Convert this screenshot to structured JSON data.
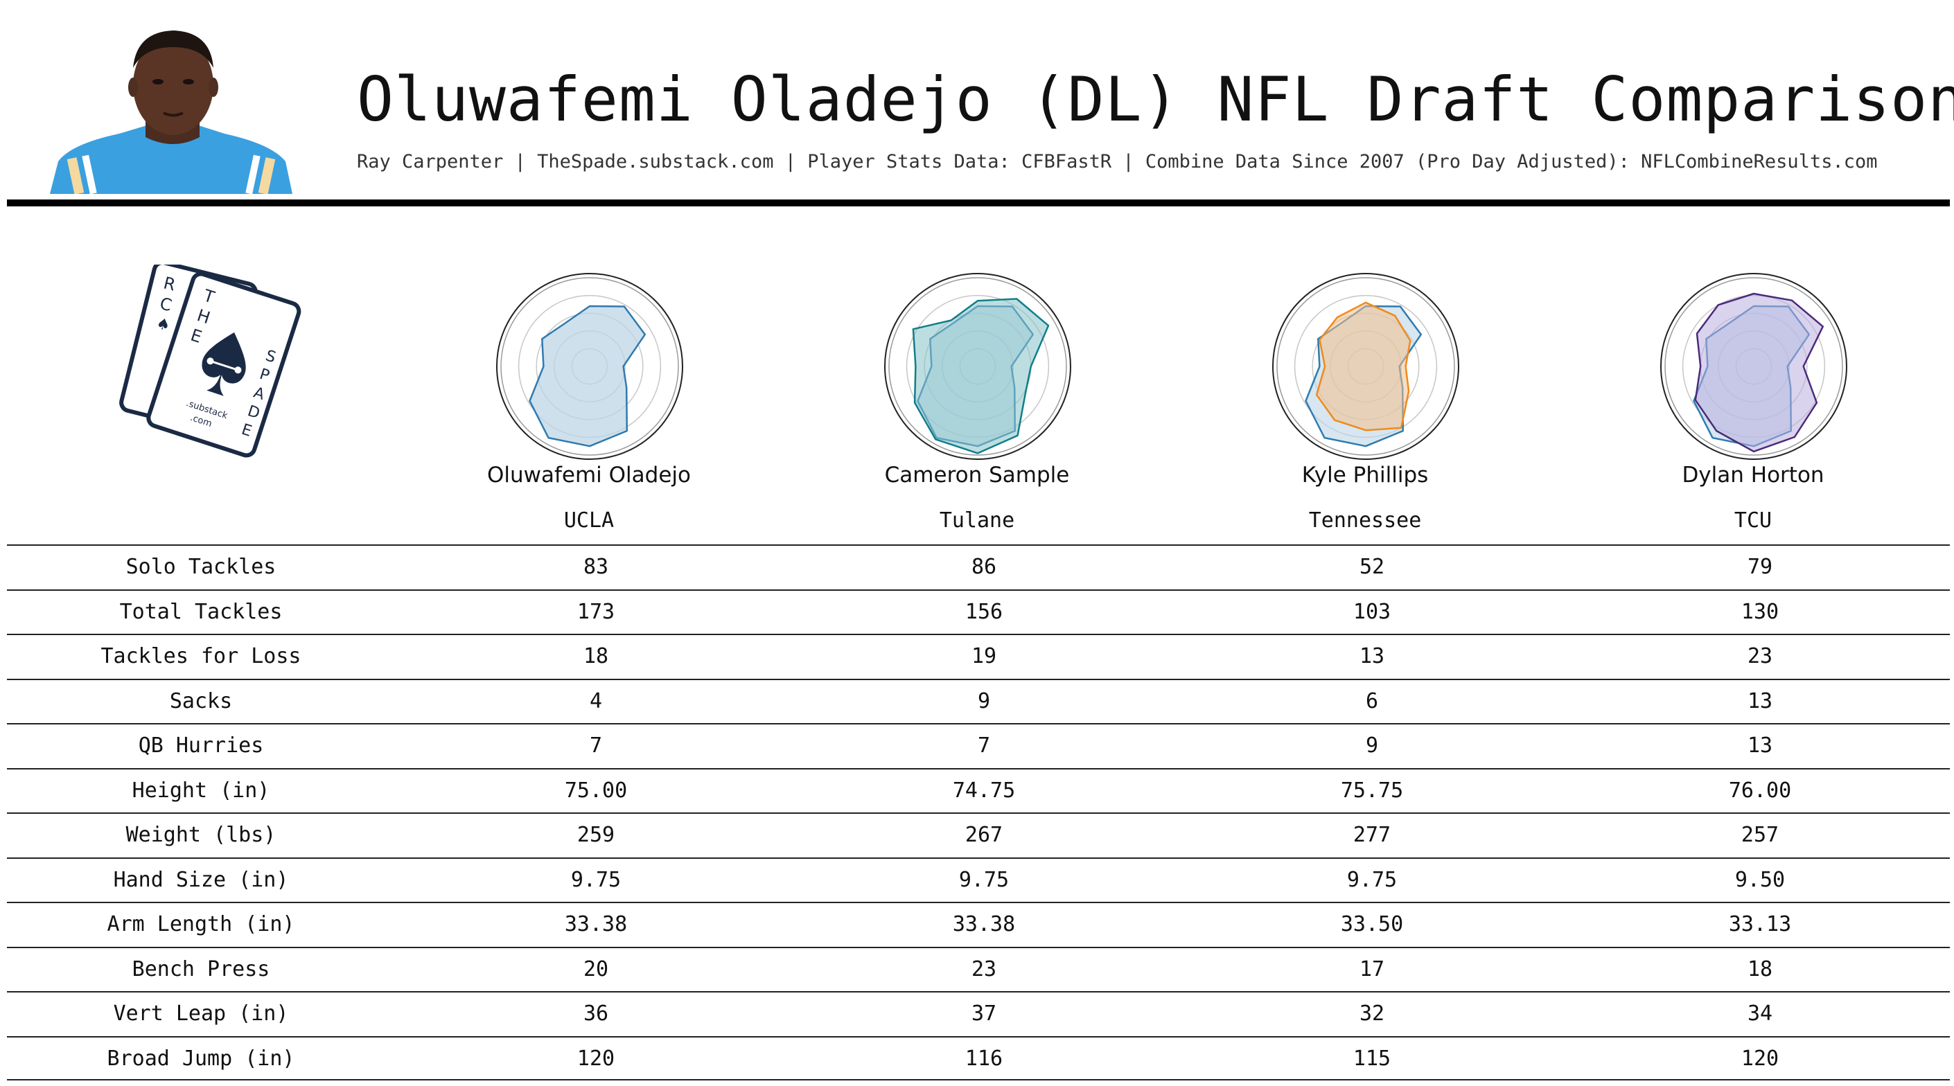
{
  "header": {
    "title": "Oluwafemi Oladejo (DL) NFL Draft Comparison",
    "subtitle": "Ray Carpenter | TheSpade.substack.com | Player Stats Data: CFBFastR | Combine Data Since 2007 (Pro Day Adjusted): NFLCombineResults.com"
  },
  "logo": {
    "card_back_letters": [
      "R",
      "C"
    ],
    "card_front_letters_left": [
      "T",
      "H",
      "E"
    ],
    "card_front_letters_right": [
      "S",
      "P",
      "A",
      "D",
      "E"
    ],
    "card_url_line1": ".substack",
    "card_url_line2": ".com"
  },
  "colors": {
    "base_fill": "#bcd6e6",
    "base_stroke": "#2f7bb0",
    "sample_fill": "#86c3c8",
    "sample_stroke": "#0f7f8a",
    "phillips_fill": "#f4c08a",
    "phillips_stroke": "#f08a1c",
    "horton_fill": "#b9aee0",
    "horton_stroke": "#4a2a7a"
  },
  "players": [
    {
      "name": "Oluwafemi Oladejo",
      "school": "UCLA"
    },
    {
      "name": "Cameron Sample",
      "school": "Tulane"
    },
    {
      "name": "Kyle Phillips",
      "school": "Tennessee"
    },
    {
      "name": "Dylan Horton",
      "school": "TCU"
    }
  ],
  "table": {
    "rows": [
      {
        "label": "Solo Tackles",
        "values": [
          "83",
          "86",
          "52",
          "79"
        ]
      },
      {
        "label": "Total Tackles",
        "values": [
          "173",
          "156",
          "103",
          "130"
        ]
      },
      {
        "label": "Tackles for Loss",
        "values": [
          "18",
          "19",
          "13",
          "23"
        ]
      },
      {
        "label": "Sacks",
        "values": [
          "4",
          "9",
          "6",
          "13"
        ]
      },
      {
        "label": "QB Hurries",
        "values": [
          "7",
          "7",
          "9",
          "13"
        ]
      },
      {
        "label": "Height (in)",
        "values": [
          "75.00",
          "74.75",
          "75.75",
          "76.00"
        ]
      },
      {
        "label": "Weight (lbs)",
        "values": [
          "259",
          "267",
          "277",
          "257"
        ]
      },
      {
        "label": "Hand Size (in)",
        "values": [
          "9.75",
          "9.75",
          "9.75",
          "9.50"
        ]
      },
      {
        "label": "Arm Length (in)",
        "values": [
          "33.38",
          "33.38",
          "33.50",
          "33.13"
        ]
      },
      {
        "label": "Bench Press",
        "values": [
          "20",
          "23",
          "17",
          "18"
        ]
      },
      {
        "label": "Vert Leap (in)",
        "values": [
          "36",
          "37",
          "32",
          "34"
        ]
      },
      {
        "label": "Broad Jump (in)",
        "values": [
          "120",
          "116",
          "115",
          "120"
        ]
      }
    ]
  },
  "chart_data": {
    "type": "radar",
    "grid": true,
    "axes": [
      "Solo Tackles",
      "Total Tackles",
      "Tackles for Loss",
      "Sacks",
      "QB Hurries",
      "Height (in)",
      "Weight (lbs)",
      "Hand Size (in)",
      "Arm Length (in)",
      "Bench Press",
      "Vert Leap (in)",
      "Broad Jump (in)"
    ],
    "scale": [
      0,
      1
    ],
    "series": [
      {
        "name": "Oluwafemi Oladejo",
        "values": [
          0.68,
          0.78,
          0.72,
          0.38,
          0.48,
          0.84,
          0.9,
          0.93,
          0.78,
          0.52,
          0.62,
          0.56
        ]
      },
      {
        "name": "Cameron Sample",
        "values": [
          0.74,
          0.88,
          0.92,
          0.6,
          0.62,
          0.9,
          0.98,
          0.95,
          0.82,
          0.7,
          0.84,
          0.6
        ]
      },
      {
        "name": "Kyle Phillips",
        "values": [
          0.72,
          0.66,
          0.58,
          0.45,
          0.56,
          0.8,
          0.72,
          0.7,
          0.64,
          0.46,
          0.6,
          0.64
        ]
      },
      {
        "name": "Dylan Horton",
        "values": [
          0.82,
          0.86,
          0.9,
          0.56,
          0.82,
          0.92,
          0.96,
          0.84,
          0.76,
          0.6,
          0.74,
          0.8
        ]
      }
    ]
  }
}
